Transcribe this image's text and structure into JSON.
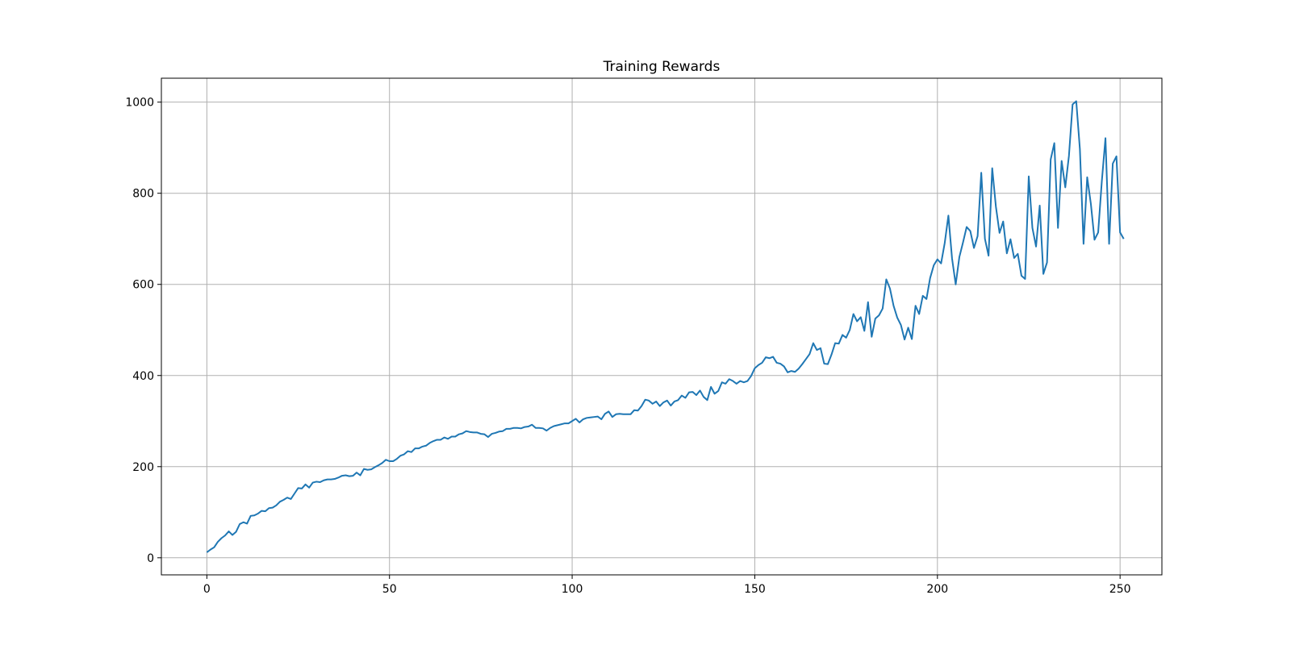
{
  "chart_data": {
    "type": "line",
    "title": "Training Rewards",
    "xlabel": "",
    "ylabel": "",
    "xlim": [
      -12.45,
      261.45
    ],
    "ylim": [
      -37.5,
      1052.5
    ],
    "grid": true,
    "color": "#1f77b4",
    "xticks": [
      0,
      50,
      100,
      150,
      200,
      250
    ],
    "yticks": [
      0,
      200,
      400,
      600,
      800,
      1000
    ],
    "series": [
      {
        "values": [
          12,
          18,
          23,
          35,
          43,
          49,
          58,
          50,
          57,
          74,
          78,
          75,
          92,
          93,
          97,
          103,
          102,
          109,
          110,
          115,
          123,
          127,
          132,
          129,
          141,
          153,
          152,
          161,
          154,
          165,
          167,
          166,
          170,
          172,
          172,
          173,
          176,
          180,
          181,
          179,
          180,
          187,
          181,
          195,
          193,
          194,
          199,
          203,
          208,
          215,
          212,
          212,
          217,
          224,
          227,
          234,
          232,
          240,
          240,
          244,
          246,
          252,
          256,
          259,
          259,
          264,
          261,
          266,
          266,
          271,
          273,
          278,
          276,
          275,
          275,
          272,
          271,
          265,
          272,
          274,
          277,
          278,
          283,
          283,
          285,
          285,
          284,
          287,
          288,
          292,
          285,
          285,
          284,
          279,
          285,
          289,
          291,
          293,
          295,
          295,
          300,
          305,
          297,
          304,
          307,
          308,
          309,
          310,
          304,
          316,
          321,
          309,
          315,
          316,
          315,
          315,
          315,
          324,
          323,
          333,
          347,
          345,
          338,
          343,
          333,
          341,
          345,
          334,
          343,
          346,
          356,
          351,
          363,
          364,
          357,
          367,
          353,
          346,
          375,
          360,
          366,
          385,
          382,
          392,
          388,
          382,
          388,
          385,
          388,
          399,
          416,
          423,
          428,
          440,
          438,
          441,
          428,
          426,
          420,
          407,
          410,
          408,
          415,
          425,
          436,
          447,
          471,
          456,
          460,
          426,
          425,
          446,
          471,
          470,
          489,
          483,
          500,
          535,
          519,
          528,
          498,
          561,
          485,
          525,
          532,
          547,
          611,
          591,
          553,
          527,
          511,
          479,
          505,
          480,
          553,
          535,
          575,
          568,
          614,
          642,
          655,
          646,
          691,
          751,
          657,
          600,
          660,
          692,
          726,
          717,
          680,
          706,
          845,
          700,
          663,
          855,
          771,
          713,
          738,
          668,
          699,
          658,
          667,
          619,
          612,
          837,
          724,
          683,
          773,
          623,
          648,
          874,
          910,
          724,
          871,
          813,
          882,
          995,
          1002,
          897,
          689,
          835,
          777,
          698,
          714,
          826,
          921,
          689,
          865,
          881,
          714,
          700
        ]
      }
    ]
  }
}
